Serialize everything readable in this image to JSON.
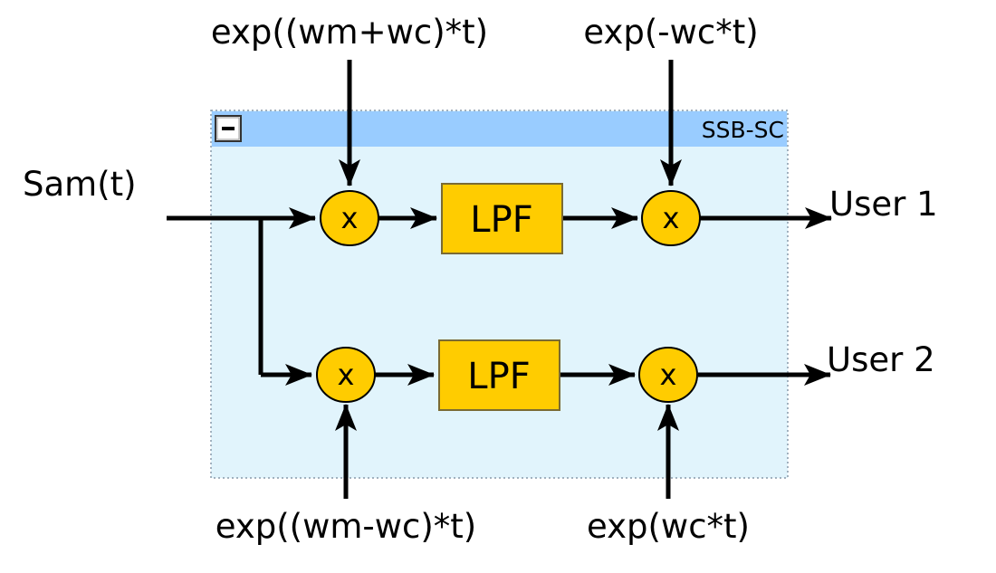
{
  "diagram": {
    "input_label": "Sam(t)",
    "group": {
      "title": "SSB-SC",
      "collapse_glyph": "−"
    },
    "upper": {
      "osc_in": "exp((wm+wc)*t)",
      "osc_out": "exp(-wc*t)",
      "mixer_symbol": "x",
      "filter_label": "LPF",
      "output_label": "User 1"
    },
    "lower": {
      "osc_in": "exp((wm-wc)*t)",
      "osc_out": "exp(wc*t)",
      "mixer_symbol": "x",
      "filter_label": "LPF",
      "output_label": "User 2"
    },
    "colors": {
      "group_fill": "#e1f4fc",
      "group_header": "#99ccff",
      "group_border": "#8899aa",
      "block_fill": "#ffcc00",
      "block_stroke": "#7a6a33",
      "line": "#000000"
    }
  }
}
